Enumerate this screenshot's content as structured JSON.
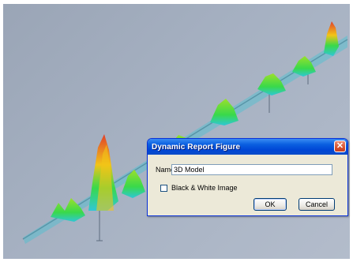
{
  "dialog": {
    "title": "Dynamic Report Figure",
    "close_glyph": "✕",
    "name_label": "Name",
    "name_value": "3D Model",
    "checkbox_label": "Black & White Image",
    "checkbox_checked": false,
    "ok_label": "OK",
    "cancel_label": "Cancel"
  },
  "colors": {
    "background": "#a6b1c2",
    "axis": "#6e7c8f",
    "peak_high": "#e0402b",
    "peak_mid": "#f2c418",
    "peak_low": "#39d94a",
    "peak_base": "#2fc7d6",
    "titlebar": "#0a5fe0"
  }
}
